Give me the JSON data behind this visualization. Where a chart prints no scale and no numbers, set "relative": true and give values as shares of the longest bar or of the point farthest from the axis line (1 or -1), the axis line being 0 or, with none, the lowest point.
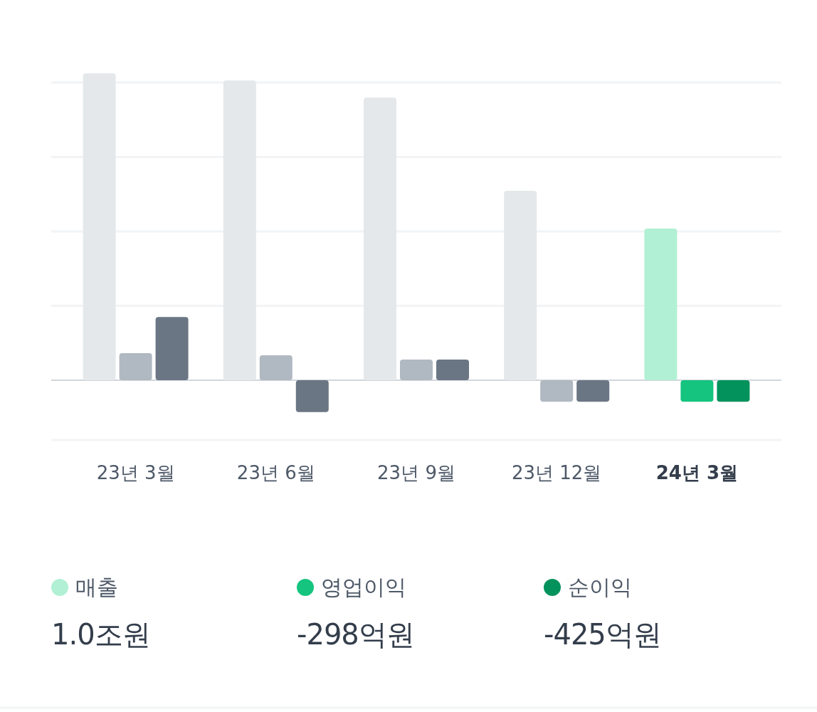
{
  "chart_data": {
    "type": "bar",
    "relative": true,
    "grid": "y",
    "legend": "bottom",
    "categories": [
      "23년 3월",
      "23년 6월",
      "23년 9월",
      "23년 12월",
      "24년 3월"
    ],
    "series": [
      {
        "name": "매출",
        "color": "#b1f0d4",
        "colors": [
          "#e4e8eb",
          "#e4e8eb",
          "#e4e8eb",
          "#e4e8eb",
          "#b1f0d4"
        ],
        "values": [
          1,
          0.977,
          0.921,
          0.617,
          0.494
        ]
      },
      {
        "name": "영업이익",
        "color": "#15c47e",
        "colors": [
          "#b0b8c1",
          "#b0b8c1",
          "#b0b8c1",
          "#b0b8c1",
          "#15c47e"
        ],
        "values": [
          0.088,
          0.081,
          0.067,
          -0.07,
          -0.07
        ]
      },
      {
        "name": "순이익",
        "color": "#03925c",
        "colors": [
          "#6b7684",
          "#6b7684",
          "#6b7684",
          "#6b7684",
          "#03925c"
        ],
        "values": [
          0.206,
          -0.104,
          0.067,
          -0.07,
          -0.07
        ]
      }
    ],
    "annotations": [
      "1.0조원",
      "-298억원",
      "-425억원"
    ]
  }
}
